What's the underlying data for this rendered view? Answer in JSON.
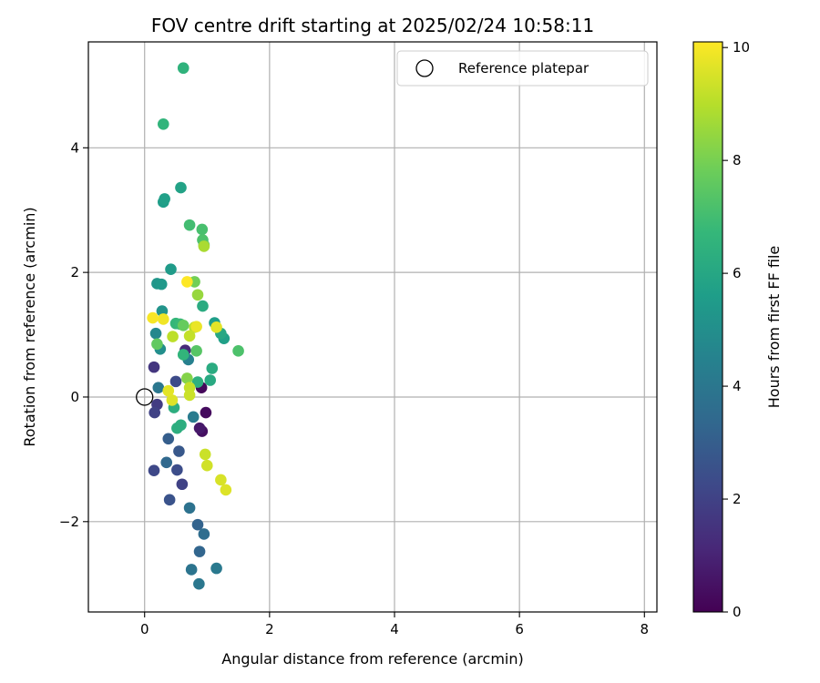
{
  "chart_data": {
    "type": "scatter",
    "title": "FOV centre drift starting at 2025/02/24 10:58:11",
    "xlabel": "Angular distance from reference (arcmin)",
    "ylabel": "Rotation from reference (arcmin)",
    "xlim": [
      -0.9,
      8.2
    ],
    "ylim": [
      -3.45,
      5.7
    ],
    "xticks": [
      0,
      2,
      4,
      6,
      8
    ],
    "yticks": [
      -2,
      0,
      2,
      4
    ],
    "xtick_labels": [
      "0",
      "2",
      "4",
      "6",
      "8"
    ],
    "ytick_labels": [
      "−2",
      "0",
      "2",
      "4"
    ],
    "grid": true,
    "legend": {
      "label": "Reference platepar",
      "location": "top-right"
    },
    "reference_point": {
      "x": 0,
      "y": 0
    },
    "colorbar": {
      "label": "Hours from first FF file",
      "range": [
        0,
        10.1
      ],
      "ticks": [
        0,
        2,
        4,
        6,
        8,
        10
      ],
      "tick_labels": [
        "0",
        "2",
        "4",
        "6",
        "8",
        "10"
      ],
      "colormap": [
        "#440154",
        "#482878",
        "#3e4989",
        "#31688e",
        "#26828e",
        "#1f9e89",
        "#35b779",
        "#6ece58",
        "#b5de2b",
        "#fde725"
      ]
    },
    "points": [
      {
        "x": 0.91,
        "y": 0.15,
        "t": 0.2
      },
      {
        "x": 0.98,
        "y": -0.25,
        "t": 0.3
      },
      {
        "x": 0.92,
        "y": -0.55,
        "t": 0.4
      },
      {
        "x": 0.88,
        "y": -0.5,
        "t": 0.7
      },
      {
        "x": 0.65,
        "y": 0.75,
        "t": 1.2
      },
      {
        "x": 0.15,
        "y": 0.48,
        "t": 1.6
      },
      {
        "x": 0.2,
        "y": -0.12,
        "t": 1.8
      },
      {
        "x": 0.16,
        "y": -0.25,
        "t": 2.0
      },
      {
        "x": 0.6,
        "y": -1.4,
        "t": 2.0
      },
      {
        "x": 0.15,
        "y": -1.18,
        "t": 2.2
      },
      {
        "x": 0.5,
        "y": 0.25,
        "t": 2.3
      },
      {
        "x": 0.52,
        "y": -1.17,
        "t": 2.4
      },
      {
        "x": 0.4,
        "y": -1.65,
        "t": 2.6
      },
      {
        "x": 0.55,
        "y": -0.87,
        "t": 2.8
      },
      {
        "x": 0.38,
        "y": -0.67,
        "t": 3.0
      },
      {
        "x": 0.35,
        "y": -1.05,
        "t": 3.4
      },
      {
        "x": 0.85,
        "y": -2.05,
        "t": 3.2
      },
      {
        "x": 0.88,
        "y": -2.48,
        "t": 3.3
      },
      {
        "x": 0.95,
        "y": -2.2,
        "t": 3.6
      },
      {
        "x": 0.72,
        "y": -1.78,
        "t": 3.8
      },
      {
        "x": 0.75,
        "y": -2.77,
        "t": 3.9
      },
      {
        "x": 0.87,
        "y": -3.0,
        "t": 4.0
      },
      {
        "x": 1.15,
        "y": -2.75,
        "t": 4.1
      },
      {
        "x": 0.22,
        "y": 0.15,
        "t": 4.0
      },
      {
        "x": 0.78,
        "y": -0.32,
        "t": 4.2
      },
      {
        "x": 0.7,
        "y": 0.6,
        "t": 4.4
      },
      {
        "x": 0.18,
        "y": 1.02,
        "t": 4.7
      },
      {
        "x": 0.25,
        "y": 0.77,
        "t": 5.0
      },
      {
        "x": 0.28,
        "y": 1.38,
        "t": 5.2
      },
      {
        "x": 0.2,
        "y": 1.82,
        "t": 5.3
      },
      {
        "x": 0.27,
        "y": 1.81,
        "t": 5.4
      },
      {
        "x": 0.42,
        "y": 2.05,
        "t": 5.5
      },
      {
        "x": 0.3,
        "y": 3.13,
        "t": 5.6
      },
      {
        "x": 0.32,
        "y": 3.18,
        "t": 5.7
      },
      {
        "x": 0.58,
        "y": 3.36,
        "t": 5.8
      },
      {
        "x": 1.12,
        "y": 1.19,
        "t": 5.6
      },
      {
        "x": 1.27,
        "y": 0.94,
        "t": 5.7
      },
      {
        "x": 1.22,
        "y": 1.02,
        "t": 6.0
      },
      {
        "x": 1.05,
        "y": 0.27,
        "t": 6.1
      },
      {
        "x": 1.08,
        "y": 0.46,
        "t": 6.2
      },
      {
        "x": 0.93,
        "y": 1.46,
        "t": 6.2
      },
      {
        "x": 0.47,
        "y": -0.17,
        "t": 6.3
      },
      {
        "x": 0.52,
        "y": -0.5,
        "t": 6.3
      },
      {
        "x": 0.58,
        "y": -0.45,
        "t": 6.3
      },
      {
        "x": 0.85,
        "y": 0.24,
        "t": 6.4
      },
      {
        "x": 0.62,
        "y": 5.28,
        "t": 6.5
      },
      {
        "x": 0.3,
        "y": 4.38,
        "t": 6.6
      },
      {
        "x": 0.62,
        "y": 0.68,
        "t": 6.6
      },
      {
        "x": 0.5,
        "y": 1.18,
        "t": 6.7
      },
      {
        "x": 0.57,
        "y": 1.17,
        "t": 6.8
      },
      {
        "x": 0.72,
        "y": 2.76,
        "t": 7.0
      },
      {
        "x": 0.92,
        "y": 2.69,
        "t": 7.1
      },
      {
        "x": 0.93,
        "y": 2.52,
        "t": 7.2
      },
      {
        "x": 0.95,
        "y": 2.44,
        "t": 7.3
      },
      {
        "x": 1.5,
        "y": 0.74,
        "t": 7.2
      },
      {
        "x": 0.83,
        "y": 0.74,
        "t": 7.4
      },
      {
        "x": 0.2,
        "y": 0.85,
        "t": 7.6
      },
      {
        "x": 0.62,
        "y": 1.15,
        "t": 7.7
      },
      {
        "x": 0.8,
        "y": 1.85,
        "t": 7.9
      },
      {
        "x": 0.68,
        "y": 0.3,
        "t": 8.2
      },
      {
        "x": 0.85,
        "y": 1.64,
        "t": 8.5
      },
      {
        "x": 0.95,
        "y": 2.42,
        "t": 8.8
      },
      {
        "x": 0.8,
        "y": 1.12,
        "t": 9.0
      },
      {
        "x": 0.45,
        "y": 0.97,
        "t": 9.1
      },
      {
        "x": 0.72,
        "y": 0.98,
        "t": 9.2
      },
      {
        "x": 0.72,
        "y": 0.15,
        "t": 9.2
      },
      {
        "x": 0.72,
        "y": 0.03,
        "t": 9.3
      },
      {
        "x": 0.97,
        "y": -0.92,
        "t": 9.3
      },
      {
        "x": 1.0,
        "y": -1.1,
        "t": 9.4
      },
      {
        "x": 1.22,
        "y": -1.33,
        "t": 9.5
      },
      {
        "x": 1.3,
        "y": -1.49,
        "t": 9.6
      },
      {
        "x": 0.44,
        "y": -0.05,
        "t": 9.6
      },
      {
        "x": 0.38,
        "y": 0.1,
        "t": 9.7
      },
      {
        "x": 1.15,
        "y": 1.12,
        "t": 9.7
      },
      {
        "x": 0.83,
        "y": 1.13,
        "t": 9.8
      },
      {
        "x": 0.3,
        "y": 1.25,
        "t": 9.9
      },
      {
        "x": 0.13,
        "y": 1.27,
        "t": 10.0
      },
      {
        "x": 0.68,
        "y": 1.85,
        "t": 10.1
      }
    ]
  }
}
